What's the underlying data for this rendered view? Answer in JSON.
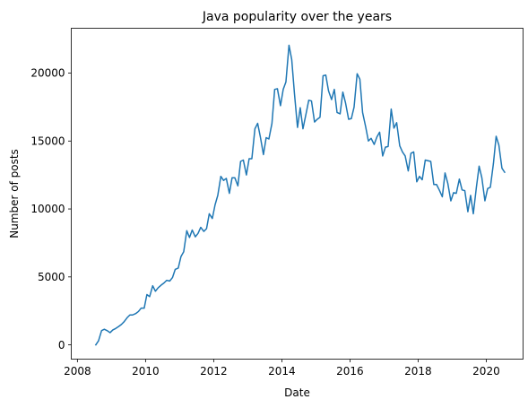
{
  "chart_data": {
    "type": "line",
    "title": "Java popularity over the years",
    "xlabel": "Date",
    "ylabel": "Number of posts",
    "xlim": [
      2007.82,
      2021.08
    ],
    "ylim": [
      -1050,
      23300
    ],
    "x_ticks": [
      2008,
      2010,
      2012,
      2014,
      2016,
      2018,
      2020
    ],
    "x_tick_labels": [
      "2008",
      "2010",
      "2012",
      "2014",
      "2016",
      "2018",
      "2020"
    ],
    "y_ticks": [
      0,
      5000,
      10000,
      15000,
      20000
    ],
    "y_tick_labels": [
      "0",
      "5000",
      "10000",
      "15000",
      "20000"
    ],
    "grid": false,
    "legend": "none",
    "series": [
      {
        "color": "#1f77b4",
        "points": [
          [
            2008.54,
            0
          ],
          [
            2008.62,
            300
          ],
          [
            2008.71,
            1050
          ],
          [
            2008.79,
            1150
          ],
          [
            2008.87,
            1050
          ],
          [
            2008.96,
            900
          ],
          [
            2009.04,
            1100
          ],
          [
            2009.12,
            1200
          ],
          [
            2009.21,
            1350
          ],
          [
            2009.29,
            1500
          ],
          [
            2009.37,
            1700
          ],
          [
            2009.46,
            2000
          ],
          [
            2009.54,
            2200
          ],
          [
            2009.62,
            2200
          ],
          [
            2009.71,
            2300
          ],
          [
            2009.79,
            2450
          ],
          [
            2009.87,
            2700
          ],
          [
            2009.96,
            2700
          ],
          [
            2010.04,
            3700
          ],
          [
            2010.12,
            3550
          ],
          [
            2010.21,
            4350
          ],
          [
            2010.29,
            3950
          ],
          [
            2010.37,
            4200
          ],
          [
            2010.46,
            4400
          ],
          [
            2010.54,
            4550
          ],
          [
            2010.62,
            4750
          ],
          [
            2010.71,
            4700
          ],
          [
            2010.79,
            4950
          ],
          [
            2010.87,
            5550
          ],
          [
            2010.96,
            5650
          ],
          [
            2011.04,
            6500
          ],
          [
            2011.12,
            6850
          ],
          [
            2011.21,
            8400
          ],
          [
            2011.29,
            7900
          ],
          [
            2011.37,
            8450
          ],
          [
            2011.46,
            7950
          ],
          [
            2011.54,
            8200
          ],
          [
            2011.62,
            8650
          ],
          [
            2011.71,
            8350
          ],
          [
            2011.79,
            8550
          ],
          [
            2011.87,
            9650
          ],
          [
            2011.96,
            9300
          ],
          [
            2012.04,
            10300
          ],
          [
            2012.12,
            11000
          ],
          [
            2012.21,
            12400
          ],
          [
            2012.29,
            12100
          ],
          [
            2012.37,
            12250
          ],
          [
            2012.46,
            11150
          ],
          [
            2012.54,
            12300
          ],
          [
            2012.62,
            12300
          ],
          [
            2012.71,
            11700
          ],
          [
            2012.79,
            13500
          ],
          [
            2012.87,
            13600
          ],
          [
            2012.96,
            12500
          ],
          [
            2013.04,
            13700
          ],
          [
            2013.12,
            13700
          ],
          [
            2013.21,
            15900
          ],
          [
            2013.29,
            16300
          ],
          [
            2013.37,
            15300
          ],
          [
            2013.46,
            14000
          ],
          [
            2013.54,
            15250
          ],
          [
            2013.62,
            15150
          ],
          [
            2013.71,
            16300
          ],
          [
            2013.79,
            18800
          ],
          [
            2013.87,
            18850
          ],
          [
            2013.96,
            17600
          ],
          [
            2014.04,
            18800
          ],
          [
            2014.12,
            19350
          ],
          [
            2014.21,
            22050
          ],
          [
            2014.29,
            21000
          ],
          [
            2014.37,
            18500
          ],
          [
            2014.46,
            16000
          ],
          [
            2014.54,
            17450
          ],
          [
            2014.62,
            15900
          ],
          [
            2014.71,
            17000
          ],
          [
            2014.79,
            18000
          ],
          [
            2014.87,
            17950
          ],
          [
            2014.96,
            16400
          ],
          [
            2015.04,
            16600
          ],
          [
            2015.12,
            16750
          ],
          [
            2015.21,
            19800
          ],
          [
            2015.29,
            19850
          ],
          [
            2015.37,
            18700
          ],
          [
            2015.46,
            18050
          ],
          [
            2015.54,
            18800
          ],
          [
            2015.62,
            17100
          ],
          [
            2015.71,
            17000
          ],
          [
            2015.79,
            18600
          ],
          [
            2015.87,
            17800
          ],
          [
            2015.96,
            16600
          ],
          [
            2016.04,
            16650
          ],
          [
            2016.12,
            17500
          ],
          [
            2016.21,
            19950
          ],
          [
            2016.29,
            19550
          ],
          [
            2016.37,
            17100
          ],
          [
            2016.46,
            16050
          ],
          [
            2016.54,
            15000
          ],
          [
            2016.62,
            15200
          ],
          [
            2016.71,
            14750
          ],
          [
            2016.79,
            15300
          ],
          [
            2016.87,
            15650
          ],
          [
            2016.96,
            13900
          ],
          [
            2017.04,
            14550
          ],
          [
            2017.12,
            14600
          ],
          [
            2017.21,
            17350
          ],
          [
            2017.29,
            15950
          ],
          [
            2017.37,
            16350
          ],
          [
            2017.46,
            14650
          ],
          [
            2017.54,
            14200
          ],
          [
            2017.62,
            13900
          ],
          [
            2017.71,
            12800
          ],
          [
            2017.79,
            14100
          ],
          [
            2017.87,
            14200
          ],
          [
            2017.96,
            12000
          ],
          [
            2018.04,
            12400
          ],
          [
            2018.12,
            12150
          ],
          [
            2018.21,
            13600
          ],
          [
            2018.29,
            13550
          ],
          [
            2018.37,
            13500
          ],
          [
            2018.46,
            11800
          ],
          [
            2018.54,
            11800
          ],
          [
            2018.62,
            11400
          ],
          [
            2018.71,
            10900
          ],
          [
            2018.79,
            12650
          ],
          [
            2018.87,
            11900
          ],
          [
            2018.96,
            10600
          ],
          [
            2019.04,
            11200
          ],
          [
            2019.12,
            11150
          ],
          [
            2019.21,
            12200
          ],
          [
            2019.29,
            11400
          ],
          [
            2019.37,
            11350
          ],
          [
            2019.46,
            9800
          ],
          [
            2019.54,
            11000
          ],
          [
            2019.62,
            9650
          ],
          [
            2019.71,
            11600
          ],
          [
            2019.79,
            13150
          ],
          [
            2019.87,
            12300
          ],
          [
            2019.96,
            10600
          ],
          [
            2020.04,
            11500
          ],
          [
            2020.12,
            11600
          ],
          [
            2020.21,
            13350
          ],
          [
            2020.29,
            15350
          ],
          [
            2020.37,
            14700
          ],
          [
            2020.46,
            13000
          ],
          [
            2020.54,
            12700
          ]
        ]
      }
    ]
  }
}
